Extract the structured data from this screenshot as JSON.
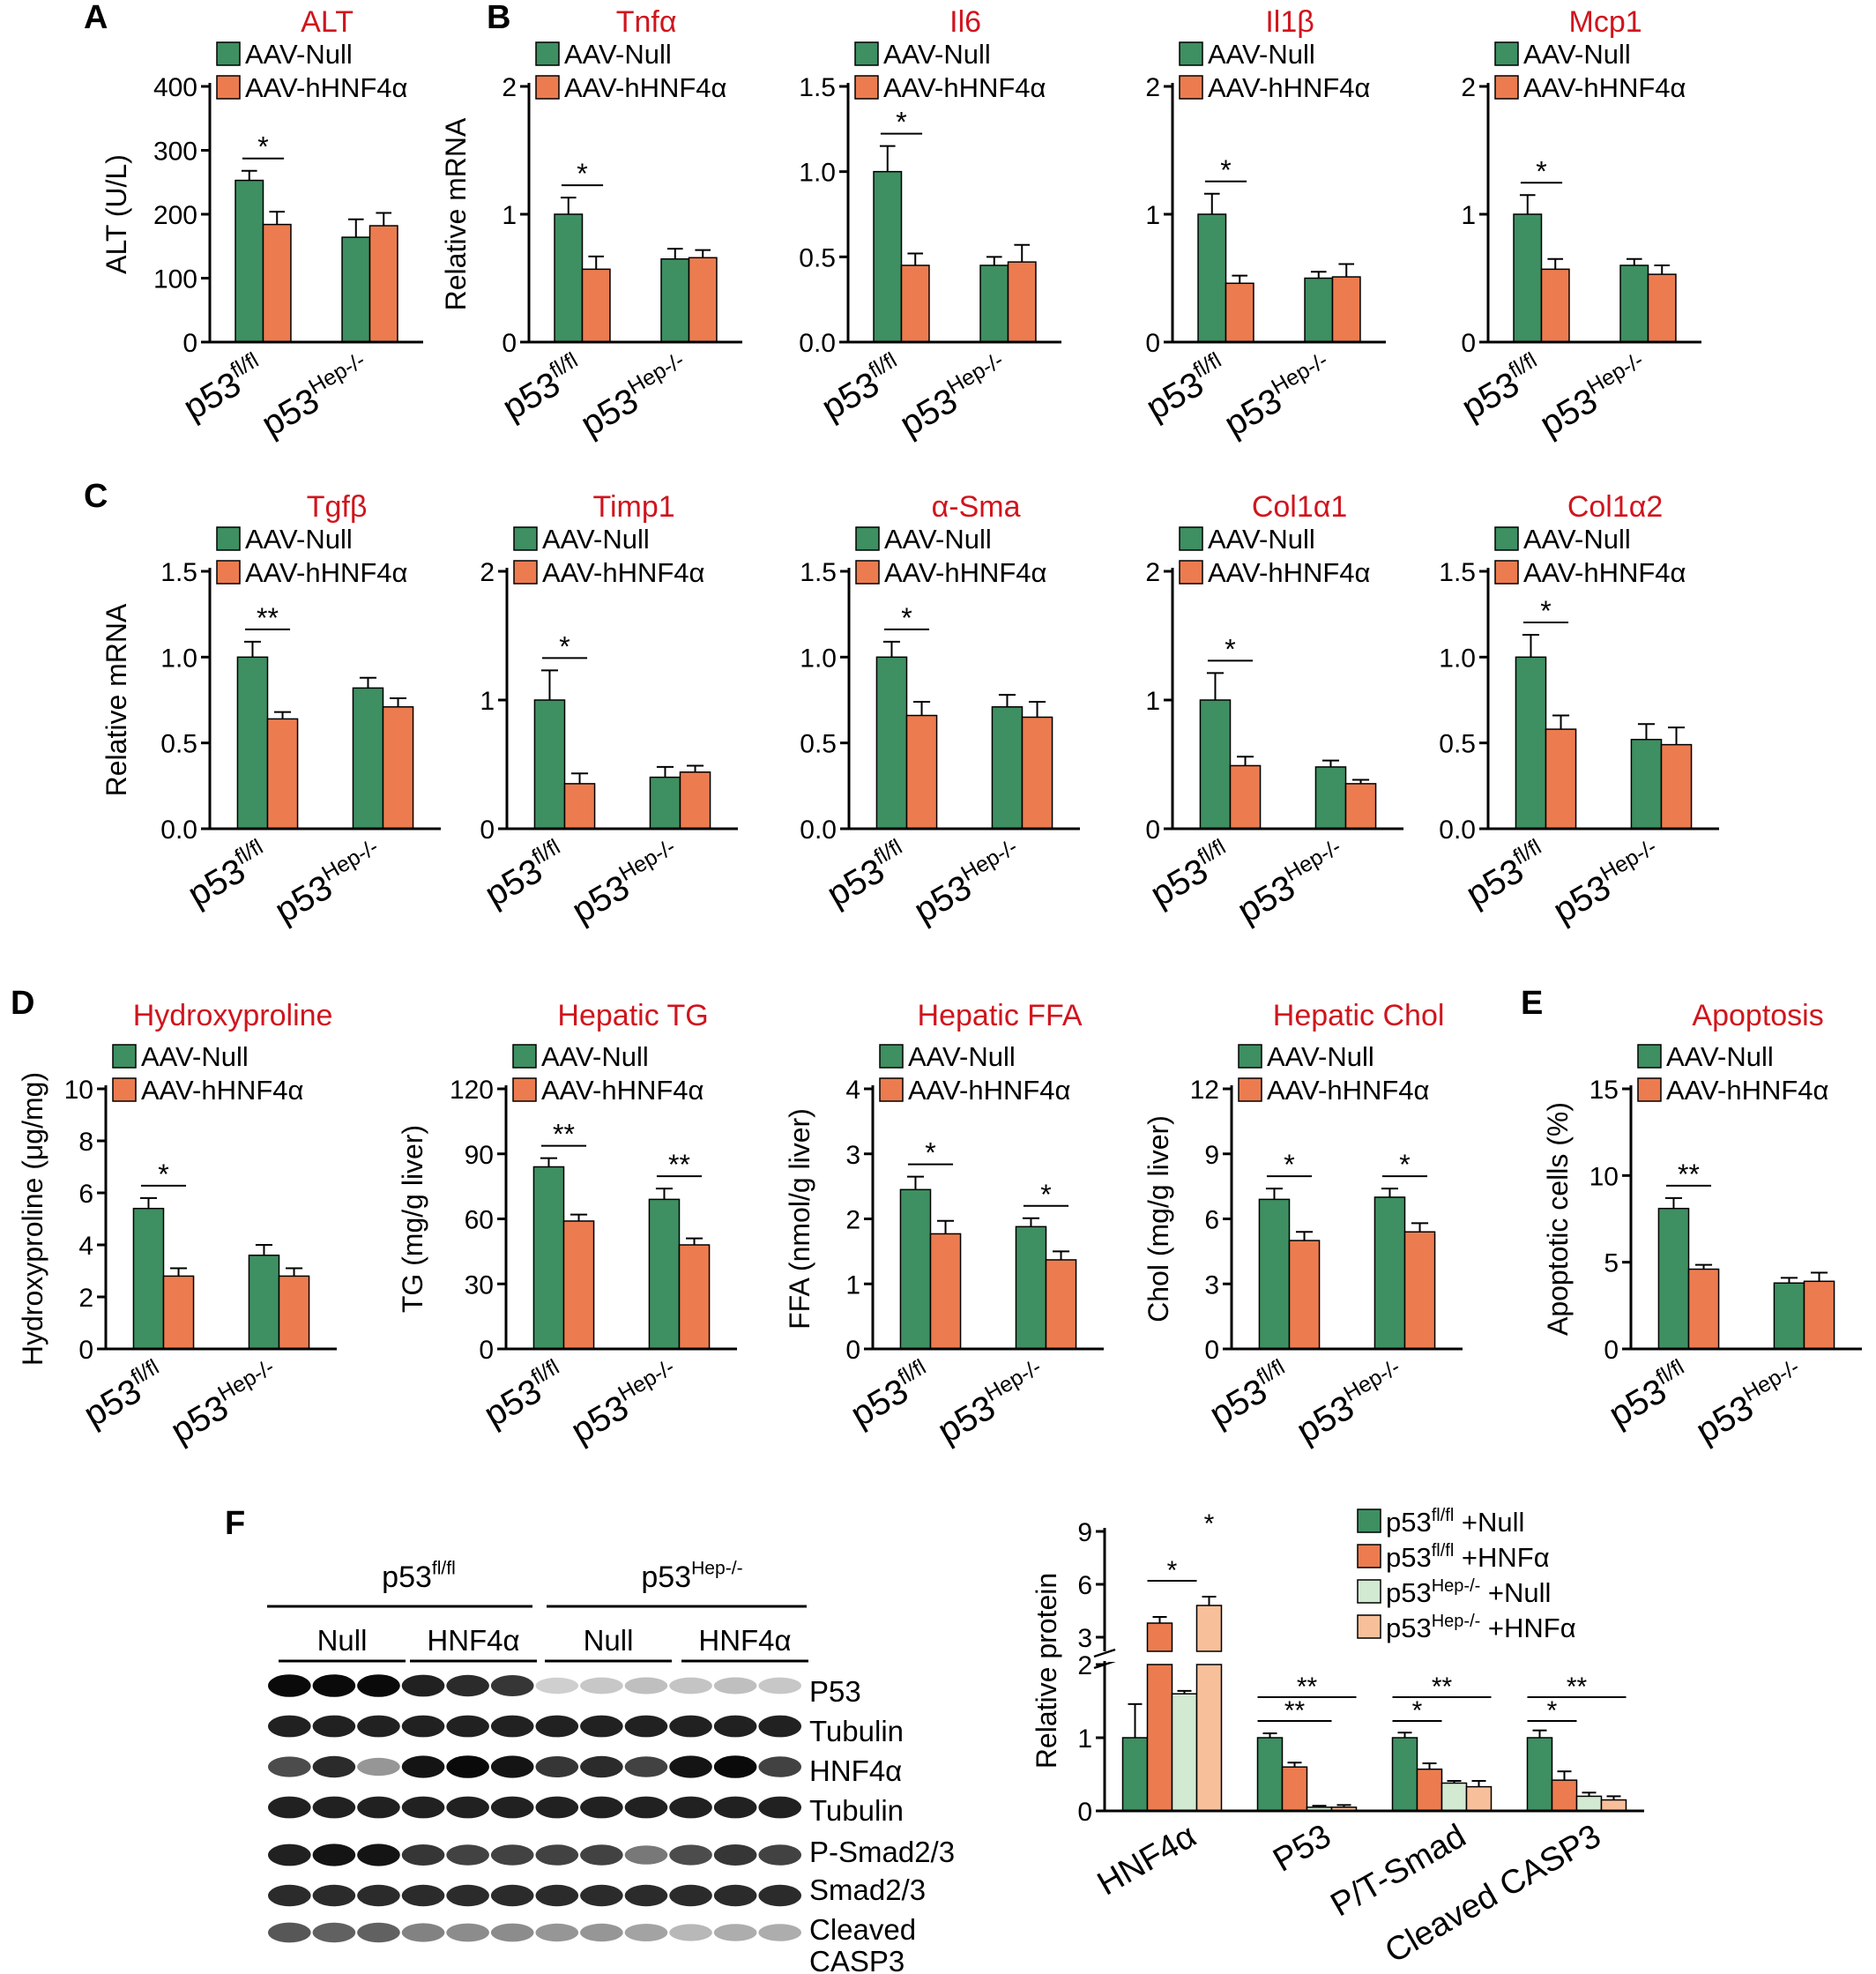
{
  "colors": {
    "null_green": "#3e8f62",
    "hnf_orange": "#ec7c4f",
    "light_green": "#d2e9d2",
    "light_orange": "#f8c09a",
    "title_red": "#d0151d",
    "axis": "#000000"
  },
  "legend_labels": {
    "null": "AAV-Null",
    "hnf": "AAV-hHNF4α"
  },
  "group_labels": {
    "base": "p53",
    "fl": "fl/fl",
    "hep": "Hep-/-"
  },
  "panel_letters": {
    "A": "A",
    "B": "B",
    "C": "C",
    "D": "D",
    "E": "E",
    "F": "F"
  },
  "chart_data": [
    {
      "id": "alt",
      "panel": "A",
      "type": "bar",
      "title": "ALT",
      "ylabel": "ALT (U/L)",
      "ylim": [
        0,
        400
      ],
      "yticks": [
        "0",
        "100",
        "200",
        "300",
        "400"
      ],
      "categories": [
        "p53 fl/fl",
        "p53 Hep-/-"
      ],
      "series": [
        {
          "name": "AAV-Null",
          "values": [
            253,
            164
          ],
          "errors": [
            15,
            28
          ]
        },
        {
          "name": "AAV-hHNF4α",
          "values": [
            184,
            182
          ],
          "errors": [
            20,
            20
          ]
        }
      ],
      "significance": [
        {
          "category": "p53 fl/fl",
          "label": "*"
        }
      ]
    },
    {
      "id": "tnfa",
      "panel": "B",
      "type": "bar",
      "title": "Tnfα",
      "ylabel": "Relative mRNA",
      "ylim": [
        0,
        2
      ],
      "yticks": [
        "0",
        "1",
        "2"
      ],
      "categories": [
        "p53 fl/fl",
        "p53 Hep-/-"
      ],
      "series": [
        {
          "name": "AAV-Null",
          "values": [
            1.0,
            0.65
          ],
          "errors": [
            0.13,
            0.08
          ]
        },
        {
          "name": "AAV-hHNF4α",
          "values": [
            0.57,
            0.66
          ],
          "errors": [
            0.1,
            0.06
          ]
        }
      ],
      "significance": [
        {
          "category": "p53 fl/fl",
          "label": "*"
        }
      ]
    },
    {
      "id": "il6",
      "panel": "",
      "type": "bar",
      "title": "Il6",
      "ylabel": "",
      "ylim": [
        0,
        1.5
      ],
      "yticks": [
        "0.0",
        "0.5",
        "1.0",
        "1.5"
      ],
      "categories": [
        "p53 fl/fl",
        "p53 Hep-/-"
      ],
      "series": [
        {
          "name": "AAV-Null",
          "values": [
            1.0,
            0.45
          ],
          "errors": [
            0.15,
            0.05
          ]
        },
        {
          "name": "AAV-hHNF4α",
          "values": [
            0.45,
            0.47
          ],
          "errors": [
            0.07,
            0.1
          ]
        }
      ],
      "significance": [
        {
          "category": "p53 fl/fl",
          "label": "*"
        }
      ]
    },
    {
      "id": "il1b",
      "panel": "",
      "type": "bar",
      "title": "Il1β",
      "ylabel": "",
      "ylim": [
        0,
        2
      ],
      "yticks": [
        "0",
        "1",
        "2"
      ],
      "categories": [
        "p53 fl/fl",
        "p53 Hep-/-"
      ],
      "series": [
        {
          "name": "AAV-Null",
          "values": [
            1.0,
            0.5
          ],
          "errors": [
            0.16,
            0.05
          ]
        },
        {
          "name": "AAV-hHNF4α",
          "values": [
            0.46,
            0.51
          ],
          "errors": [
            0.06,
            0.1
          ]
        }
      ],
      "significance": [
        {
          "category": "p53 fl/fl",
          "label": "*"
        }
      ]
    },
    {
      "id": "mcp1",
      "panel": "",
      "type": "bar",
      "title": "Mcp1",
      "ylabel": "",
      "ylim": [
        0,
        2
      ],
      "yticks": [
        "0",
        "1",
        "2"
      ],
      "categories": [
        "p53 fl/fl",
        "p53 Hep-/-"
      ],
      "series": [
        {
          "name": "AAV-Null",
          "values": [
            1.0,
            0.6
          ],
          "errors": [
            0.15,
            0.05
          ]
        },
        {
          "name": "AAV-hHNF4α",
          "values": [
            0.57,
            0.53
          ],
          "errors": [
            0.08,
            0.07
          ]
        }
      ],
      "significance": [
        {
          "category": "p53 fl/fl",
          "label": "*"
        }
      ]
    },
    {
      "id": "tgfb",
      "panel": "C",
      "type": "bar",
      "title": "Tgfβ",
      "ylabel": "Relative mRNA",
      "ylim": [
        0,
        1.5
      ],
      "yticks": [
        "0.0",
        "0.5",
        "1.0",
        "1.5"
      ],
      "categories": [
        "p53 fl/fl",
        "p53 Hep-/-"
      ],
      "series": [
        {
          "name": "AAV-Null",
          "values": [
            1.0,
            0.82
          ],
          "errors": [
            0.09,
            0.06
          ]
        },
        {
          "name": "AAV-hHNF4α",
          "values": [
            0.64,
            0.71
          ],
          "errors": [
            0.04,
            0.05
          ]
        }
      ],
      "significance": [
        {
          "category": "p53 fl/fl",
          "label": "**"
        }
      ]
    },
    {
      "id": "timp1",
      "panel": "",
      "type": "bar",
      "title": "Timp1",
      "ylabel": "",
      "ylim": [
        0,
        2
      ],
      "yticks": [
        "0",
        "1",
        "2"
      ],
      "categories": [
        "p53 fl/fl",
        "p53 Hep-/-"
      ],
      "series": [
        {
          "name": "AAV-Null",
          "values": [
            1.0,
            0.4
          ],
          "errors": [
            0.23,
            0.08
          ]
        },
        {
          "name": "AAV-hHNF4α",
          "values": [
            0.35,
            0.44
          ],
          "errors": [
            0.08,
            0.05
          ]
        }
      ],
      "significance": [
        {
          "category": "p53 fl/fl",
          "label": "*"
        }
      ]
    },
    {
      "id": "asma",
      "panel": "",
      "type": "bar",
      "title": "α-Sma",
      "ylabel": "",
      "ylim": [
        0,
        1.5
      ],
      "yticks": [
        "0.0",
        "0.5",
        "1.0",
        "1.5"
      ],
      "categories": [
        "p53 fl/fl",
        "p53 Hep-/-"
      ],
      "series": [
        {
          "name": "AAV-Null",
          "values": [
            1.0,
            0.71
          ],
          "errors": [
            0.09,
            0.07
          ]
        },
        {
          "name": "AAV-hHNF4α",
          "values": [
            0.66,
            0.65
          ],
          "errors": [
            0.08,
            0.09
          ]
        }
      ],
      "significance": [
        {
          "category": "p53 fl/fl",
          "label": "*"
        }
      ]
    },
    {
      "id": "col1a1",
      "panel": "",
      "type": "bar",
      "title": "Col1α1",
      "ylabel": "",
      "ylim": [
        0,
        2
      ],
      "yticks": [
        "0",
        "1",
        "2"
      ],
      "categories": [
        "p53 fl/fl",
        "p53 Hep-/-"
      ],
      "series": [
        {
          "name": "AAV-Null",
          "values": [
            1.0,
            0.48
          ],
          "errors": [
            0.21,
            0.05
          ]
        },
        {
          "name": "AAV-hHNF4α",
          "values": [
            0.49,
            0.35
          ],
          "errors": [
            0.07,
            0.03
          ]
        }
      ],
      "significance": [
        {
          "category": "p53 fl/fl",
          "label": "*"
        }
      ]
    },
    {
      "id": "col1a2",
      "panel": "",
      "type": "bar",
      "title": "Col1α2",
      "ylabel": "",
      "ylim": [
        0,
        1.5
      ],
      "yticks": [
        "0.0",
        "0.5",
        "1.0",
        "1.5"
      ],
      "categories": [
        "p53 fl/fl",
        "p53 Hep-/-"
      ],
      "series": [
        {
          "name": "AAV-Null",
          "values": [
            1.0,
            0.52
          ],
          "errors": [
            0.13,
            0.09
          ]
        },
        {
          "name": "AAV-hHNF4α",
          "values": [
            0.58,
            0.49
          ],
          "errors": [
            0.08,
            0.1
          ]
        }
      ],
      "significance": [
        {
          "category": "p53 fl/fl",
          "label": "*"
        }
      ]
    },
    {
      "id": "hyp",
      "panel": "D",
      "type": "bar",
      "title": "Hydroxyproline",
      "ylabel": "Hydroxyproline (μg/mg)",
      "ylim": [
        0,
        10
      ],
      "yticks": [
        "0",
        "2",
        "4",
        "6",
        "8",
        "10"
      ],
      "categories": [
        "p53 fl/fl",
        "p53 Hep-/-"
      ],
      "series": [
        {
          "name": "AAV-Null",
          "values": [
            5.4,
            3.6
          ],
          "errors": [
            0.4,
            0.4
          ]
        },
        {
          "name": "AAV-hHNF4α",
          "values": [
            2.8,
            2.8
          ],
          "errors": [
            0.3,
            0.3
          ]
        }
      ],
      "significance": [
        {
          "category": "p53 fl/fl",
          "label": "*"
        }
      ]
    },
    {
      "id": "tg",
      "panel": "",
      "type": "bar",
      "title": "Hepatic TG",
      "ylabel": "TG (mg/g liver)",
      "ylim": [
        0,
        120
      ],
      "yticks": [
        "0",
        "30",
        "60",
        "90",
        "120"
      ],
      "categories": [
        "p53 fl/fl",
        "p53 Hep-/-"
      ],
      "series": [
        {
          "name": "AAV-Null",
          "values": [
            84,
            69
          ],
          "errors": [
            4,
            5
          ]
        },
        {
          "name": "AAV-hHNF4α",
          "values": [
            59,
            48
          ],
          "errors": [
            3,
            3
          ]
        }
      ],
      "significance": [
        {
          "category": "p53 fl/fl",
          "label": "**"
        },
        {
          "category": "p53 Hep-/-",
          "label": "**"
        }
      ]
    },
    {
      "id": "ffa",
      "panel": "",
      "type": "bar",
      "title": "Hepatic FFA",
      "ylabel": "FFA (nmol/g liver)",
      "ylim": [
        0,
        4
      ],
      "yticks": [
        "0",
        "1",
        "2",
        "3",
        "4"
      ],
      "categories": [
        "p53 fl/fl",
        "p53 Hep-/-"
      ],
      "series": [
        {
          "name": "AAV-Null",
          "values": [
            2.45,
            1.88
          ],
          "errors": [
            0.2,
            0.13
          ]
        },
        {
          "name": "AAV-hHNF4α",
          "values": [
            1.77,
            1.37
          ],
          "errors": [
            0.2,
            0.13
          ]
        }
      ],
      "significance": [
        {
          "category": "p53 fl/fl",
          "label": "*"
        },
        {
          "category": "p53 Hep-/-",
          "label": "*"
        }
      ]
    },
    {
      "id": "chol",
      "panel": "",
      "type": "bar",
      "title": "Hepatic Chol",
      "ylabel": "Chol (mg/g liver)",
      "ylim": [
        0,
        12
      ],
      "yticks": [
        "0",
        "3",
        "6",
        "9",
        "12"
      ],
      "categories": [
        "p53 fl/fl",
        "p53 Hep-/-"
      ],
      "series": [
        {
          "name": "AAV-Null",
          "values": [
            6.9,
            7.0
          ],
          "errors": [
            0.5,
            0.4
          ]
        },
        {
          "name": "AAV-hHNF4α",
          "values": [
            5.0,
            5.4
          ],
          "errors": [
            0.4,
            0.4
          ]
        }
      ],
      "significance": [
        {
          "category": "p53 fl/fl",
          "label": "*"
        },
        {
          "category": "p53 Hep-/-",
          "label": "*"
        }
      ]
    },
    {
      "id": "apop",
      "panel": "E",
      "type": "bar",
      "title": "Apoptosis",
      "ylabel": "Apoptotic cells (%)",
      "ylim": [
        0,
        15
      ],
      "yticks": [
        "0",
        "5",
        "10",
        "15"
      ],
      "categories": [
        "p53 fl/fl",
        "p53 Hep-/-"
      ],
      "series": [
        {
          "name": "AAV-Null",
          "values": [
            8.1,
            3.8
          ],
          "errors": [
            0.6,
            0.3
          ]
        },
        {
          "name": "AAV-hHNF4α",
          "values": [
            4.6,
            3.9
          ],
          "errors": [
            0.25,
            0.5
          ]
        }
      ],
      "significance": [
        {
          "category": "p53 fl/fl",
          "label": "**"
        }
      ]
    },
    {
      "id": "prot",
      "panel": "F",
      "type": "bar",
      "title": "",
      "ylabel": "Relative protein",
      "categories": [
        "HNF4α",
        "P53",
        "P/T-Smad",
        "Cleaved CASP3"
      ],
      "lower_ylim": [
        0,
        2
      ],
      "lower_yticks": [
        "0",
        "1",
        "2"
      ],
      "upper_ylim": [
        2.2,
        9
      ],
      "upper_yticks": [
        "3",
        "6",
        "9"
      ],
      "series": [
        {
          "name": "p53fl/fl +Null",
          "values": [
            1.0,
            1.0,
            1.0,
            1.0
          ],
          "errors": [
            0.46,
            0.06,
            0.07,
            0.1
          ]
        },
        {
          "name": "p53fl/fl +HNFα",
          "values": [
            3.8,
            0.6,
            0.57,
            0.42
          ],
          "errors": [
            0.35,
            0.06,
            0.08,
            0.12
          ]
        },
        {
          "name": "p53Hep-/- +Null",
          "values": [
            1.6,
            0.05,
            0.38,
            0.2
          ],
          "errors": [
            0.04,
            0.02,
            0.03,
            0.05
          ]
        },
        {
          "name": "p53Hep-/- +HNFα",
          "values": [
            4.8,
            0.05,
            0.33,
            0.15
          ],
          "errors": [
            0.5,
            0.03,
            0.08,
            0.05
          ]
        }
      ],
      "legend": [
        {
          "base": "p53",
          "sup": "fl/fl",
          "suffix": " +Null"
        },
        {
          "base": "p53",
          "sup": "fl/fl",
          "suffix": " +HNFα"
        },
        {
          "base": "p53",
          "sup": "Hep-/-",
          "suffix": " +Null"
        },
        {
          "base": "p53",
          "sup": "Hep-/-",
          "suffix": " +HNFα"
        }
      ],
      "significance": [
        {
          "category": "HNF4α",
          "label": "*"
        },
        {
          "category": "HNF4α",
          "label": "*"
        },
        {
          "category": "P53",
          "label": "**"
        },
        {
          "category": "P53",
          "label": "**"
        },
        {
          "category": "P/T-Smad",
          "label": "*"
        },
        {
          "category": "P/T-Smad",
          "label": "**"
        },
        {
          "category": "Cleaved CASP3",
          "label": "*"
        },
        {
          "category": "Cleaved CASP3",
          "label": "**"
        }
      ]
    }
  ],
  "blot": {
    "group_headers": [
      {
        "base": "p53",
        "sup": "fl/fl"
      },
      {
        "base": "p53",
        "sup": "Hep-/-"
      }
    ],
    "subgroups": [
      "Null",
      "HNF4α",
      "Null",
      "HNF4α"
    ],
    "rows": [
      {
        "label": "P53",
        "intensity": [
          0.95,
          0.95,
          0.95,
          0.85,
          0.8,
          0.75,
          0.05,
          0.08,
          0.12,
          0.1,
          0.12,
          0.08
        ]
      },
      {
        "label": "Tubulin",
        "intensity": [
          0.85,
          0.85,
          0.85,
          0.85,
          0.85,
          0.85,
          0.85,
          0.85,
          0.85,
          0.85,
          0.85,
          0.85
        ]
      },
      {
        "label": "HNF4α",
        "intensity": [
          0.65,
          0.8,
          0.3,
          0.9,
          0.95,
          0.9,
          0.75,
          0.8,
          0.7,
          0.9,
          0.95,
          0.7
        ]
      },
      {
        "label": "Tubulin",
        "intensity": [
          0.85,
          0.85,
          0.85,
          0.85,
          0.85,
          0.85,
          0.85,
          0.85,
          0.85,
          0.85,
          0.85,
          0.85
        ]
      },
      {
        "label": "P-Smad2/3",
        "intensity": [
          0.85,
          0.9,
          0.9,
          0.75,
          0.7,
          0.7,
          0.7,
          0.7,
          0.45,
          0.65,
          0.75,
          0.7
        ]
      },
      {
        "label": "Smad2/3",
        "intensity": [
          0.8,
          0.8,
          0.8,
          0.8,
          0.8,
          0.8,
          0.8,
          0.8,
          0.8,
          0.8,
          0.8,
          0.8
        ]
      },
      {
        "label": "Cleaved",
        "intensity": [
          0.6,
          0.55,
          0.55,
          0.4,
          0.35,
          0.35,
          0.3,
          0.3,
          0.25,
          0.15,
          0.2,
          0.2
        ]
      },
      {
        "label": "CASP3",
        "intensity": [
          0.55,
          0.6,
          0.55,
          0.35,
          0.35,
          0.35,
          0.25,
          0.3,
          0.2,
          0.15,
          0.15,
          0.15
        ]
      },
      {
        "label": "CASP3",
        "intensity": [
          0.85,
          0.85,
          0.85,
          0.85,
          0.85,
          0.85,
          0.85,
          0.85,
          0.85,
          0.85,
          0.85,
          0.85
        ]
      },
      {
        "label": "Tubulin",
        "intensity": [
          0.85,
          0.85,
          0.85,
          0.85,
          0.85,
          0.85,
          0.85,
          0.85,
          0.85,
          0.85,
          0.85,
          0.85
        ]
      }
    ]
  }
}
